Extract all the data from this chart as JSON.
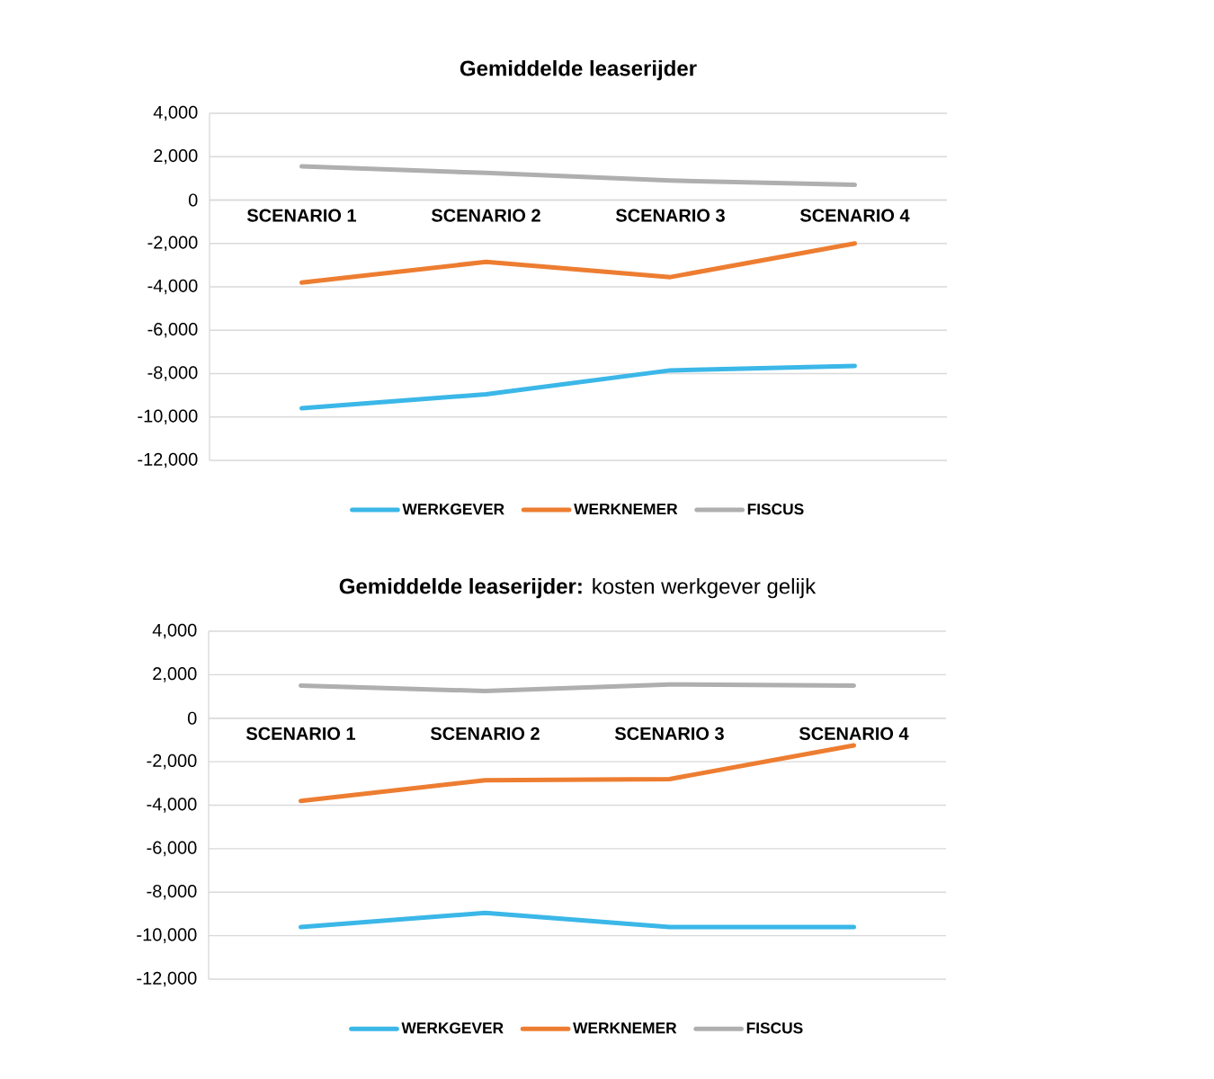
{
  "chart_data": [
    {
      "type": "line",
      "title": "Gemiddelde leaserijder",
      "categories": [
        "SCENARIO 1",
        "SCENARIO 2",
        "SCENARIO 3",
        "SCENARIO 4"
      ],
      "series": [
        {
          "name": "WERKGEVER",
          "color": "#3bb7e8",
          "values": [
            -9600,
            -8950,
            -7850,
            -7650
          ]
        },
        {
          "name": "WERKNEMER",
          "color": "#ed7d31",
          "values": [
            -3800,
            -2850,
            -3550,
            -2000
          ]
        },
        {
          "name": "FISCUS",
          "color": "#afafaf",
          "values": [
            1550,
            1250,
            900,
            700
          ]
        }
      ],
      "ylim": [
        -12000,
        4000
      ],
      "yticks": [
        {
          "value": -12000,
          "label": "-12,000"
        },
        {
          "value": -10000,
          "label": "-10,000"
        },
        {
          "value": -8000,
          "label": "-8,000"
        },
        {
          "value": -6000,
          "label": "-6,000"
        },
        {
          "value": -4000,
          "label": "-4,000"
        },
        {
          "value": -2000,
          "label": "-2,000"
        },
        0,
        {
          "value": 2000,
          "label": "2,000"
        },
        {
          "value": 4000,
          "label": "4,000"
        }
      ],
      "grid": "y",
      "legend": "bottom",
      "marker": "none"
    },
    {
      "type": "line",
      "title": "Gemiddelde leaserijder:",
      "subtitle": "kosten werkgever gelijk",
      "categories": [
        "SCENARIO 1",
        "SCENARIO 2",
        "SCENARIO 3",
        "SCENARIO 4"
      ],
      "series": [
        {
          "name": "WERKGEVER",
          "color": "#3bb7e8",
          "values": [
            -9600,
            -8950,
            -9600,
            -9600
          ]
        },
        {
          "name": "WERKNEMER",
          "color": "#ed7d31",
          "values": [
            -3800,
            -2850,
            -2800,
            -1250
          ]
        },
        {
          "name": "FISCUS",
          "color": "#afafaf",
          "values": [
            1500,
            1250,
            1550,
            1500
          ]
        }
      ],
      "ylim": [
        -12000,
        4000
      ],
      "yticks": [
        {
          "value": -12000,
          "label": "-12,000"
        },
        {
          "value": -10000,
          "label": "-10,000"
        },
        {
          "value": -8000,
          "label": "-8,000"
        },
        {
          "value": -6000,
          "label": "-6,000"
        },
        {
          "value": -4000,
          "label": "-4,000"
        },
        {
          "value": -2000,
          "label": "-2,000"
        },
        0,
        {
          "value": 2000,
          "label": "2,000"
        },
        {
          "value": 4000,
          "label": "4,000"
        }
      ],
      "grid": "y",
      "legend": "bottom",
      "marker": "none"
    }
  ]
}
